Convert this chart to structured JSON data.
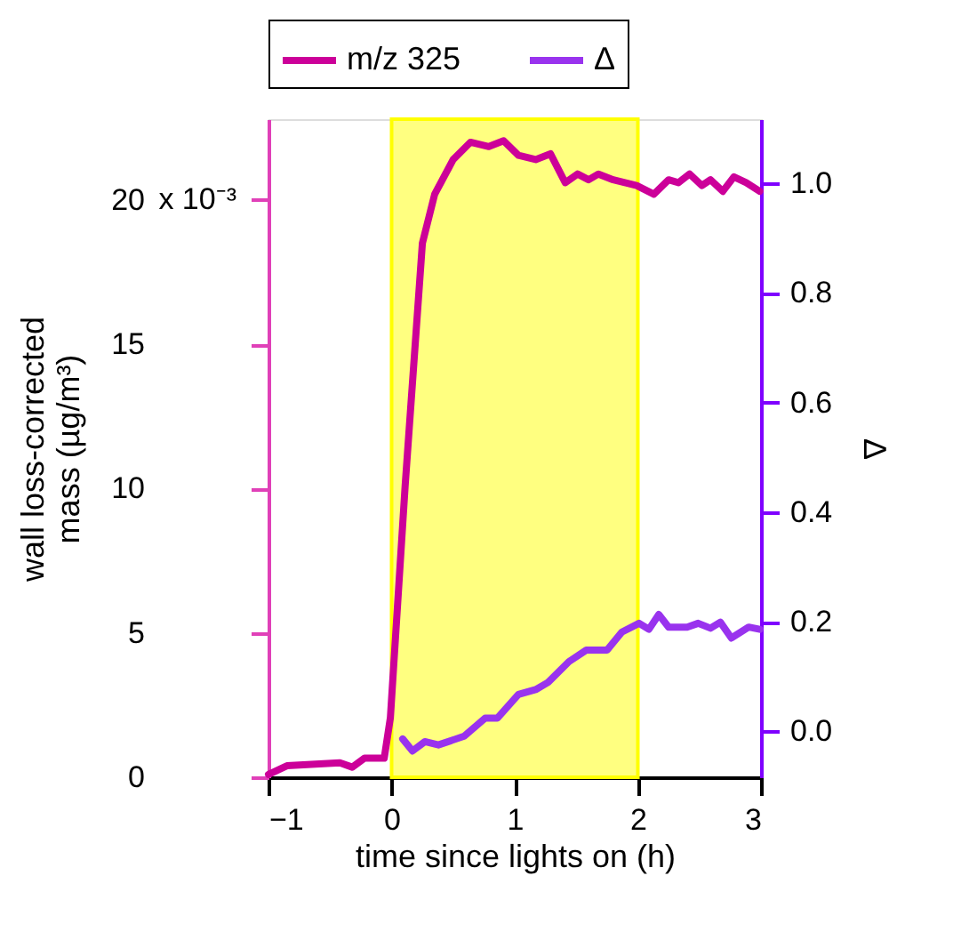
{
  "chart_data": {
    "type": "line",
    "xlabel": "time since lights on (h)",
    "ylabel": "wall loss-corrected\nmass (µg/m³)",
    "y2label": "Δ",
    "xlim": [
      -1,
      3
    ],
    "xticks": [
      -1,
      0,
      1,
      2,
      3
    ],
    "ylim": [
      0,
      22.8
    ],
    "yticks": [
      0,
      5,
      10,
      15,
      20
    ],
    "annotations": [
      "x 10⁻³"
    ],
    "y2lim": [
      -0.084,
      1.117
    ],
    "y2ticks": [
      {
        "value": 0,
        "label": "0.0"
      },
      {
        "value": 0.2,
        "label": "0.2"
      },
      {
        "value": 0.4,
        "label": "0.4"
      },
      {
        "value": 0.6,
        "label": "0.6"
      },
      {
        "value": 0.8,
        "label": "0.8"
      },
      {
        "value": 1,
        "label": "1.0"
      }
    ],
    "grid": false,
    "legend": "top",
    "line_style": "solid",
    "marker": "none",
    "bands": [
      {
        "axis": "x",
        "from": 0,
        "to": 2,
        "color": "#ffff80"
      }
    ],
    "series": [
      {
        "name": "m/z 325",
        "color": "#cc0099",
        "x": [
          -1,
          -0.85,
          -0.42,
          -0.32,
          -0.22,
          -0.06,
          -0.01,
          0.11,
          0.25,
          0.35,
          0.5,
          0.64,
          0.79,
          0.91,
          1.03,
          1.17,
          1.29,
          1.41,
          1.51,
          1.6,
          1.68,
          1.8,
          1.99,
          2.13,
          2.25,
          2.33,
          2.42,
          2.52,
          2.59,
          2.69,
          2.78,
          2.88,
          2.99
        ],
        "values": [
          0.1,
          0.4,
          0.5,
          0.35,
          0.66,
          0.66,
          2.06,
          10.1,
          18.5,
          20.2,
          21.4,
          22.0,
          21.85,
          22.05,
          21.55,
          21.4,
          21.6,
          20.6,
          20.9,
          20.7,
          20.9,
          20.7,
          20.5,
          20.2,
          20.7,
          20.6,
          20.9,
          20.5,
          20.7,
          20.3,
          20.8,
          20.6,
          20.3
        ]
      },
      {
        "name": "Δ",
        "color": "#9933ee",
        "axis": "y2",
        "x": [
          0.09,
          0.17,
          0.27,
          0.38,
          0.59,
          0.76,
          0.86,
          1.03,
          1.17,
          1.27,
          1.44,
          1.58,
          1.75,
          1.87,
          2.01,
          2.09,
          2.17,
          2.25,
          2.4,
          2.49,
          2.59,
          2.67,
          2.76,
          2.9,
          2.99
        ],
        "values": [
          -0.014,
          -0.036,
          -0.019,
          -0.025,
          -0.009,
          0.024,
          0.024,
          0.067,
          0.076,
          0.089,
          0.127,
          0.148,
          0.148,
          0.181,
          0.197,
          0.186,
          0.213,
          0.19,
          0.19,
          0.197,
          0.188,
          0.199,
          0.17,
          0.19,
          0.186
        ]
      }
    ]
  }
}
